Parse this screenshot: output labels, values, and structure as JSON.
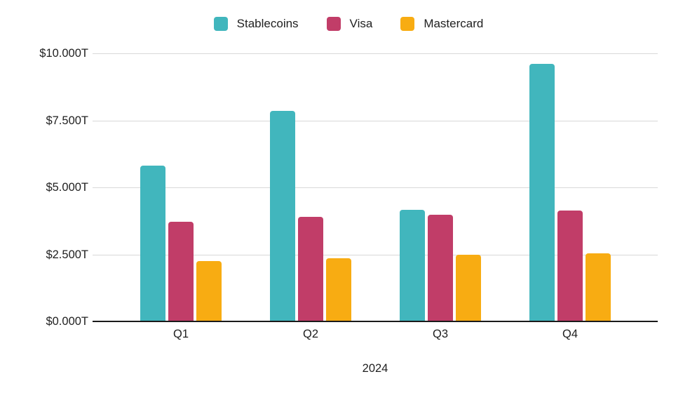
{
  "chart_data": {
    "type": "bar",
    "categories": [
      "Q1",
      "Q2",
      "Q3",
      "Q4"
    ],
    "series": [
      {
        "name": "Stablecoins",
        "color": "#41B6BD",
        "values": [
          5.82,
          7.85,
          4.16,
          9.62
        ]
      },
      {
        "name": "Visa",
        "color": "#C13D68",
        "values": [
          3.72,
          3.9,
          3.98,
          4.14
        ]
      },
      {
        "name": "Mastercard",
        "color": "#F8AC12",
        "values": [
          2.25,
          2.36,
          2.48,
          2.55
        ]
      }
    ],
    "title": "",
    "xlabel": "2024",
    "ylabel": "",
    "ylim": [
      0,
      10
    ],
    "yticks": [
      {
        "value": 0,
        "label": "$0.000T"
      },
      {
        "value": 2.5,
        "label": "$2.500T"
      },
      {
        "value": 5,
        "label": "$5.000T"
      },
      {
        "value": 7.5,
        "label": "$7.500T"
      },
      {
        "value": 10,
        "label": "$10.000T"
      }
    ],
    "legend_position": "top",
    "grid": true,
    "style": {
      "background": "#ffffff",
      "gridline_color": "#d8d8d8",
      "axis_color": "#1a1a1a",
      "text_color": "#212121"
    }
  }
}
